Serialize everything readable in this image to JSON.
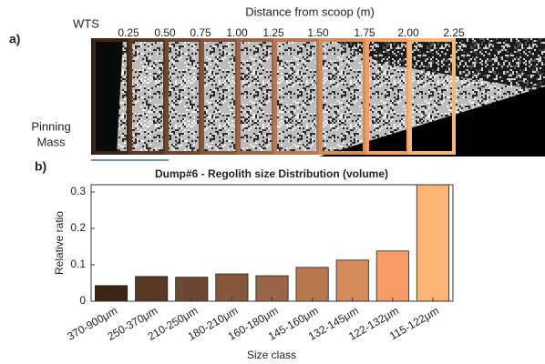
{
  "panel_a": {
    "label": "a)",
    "title": "Distance from scoop (m)",
    "wts": "WTS",
    "distances": [
      "0.25",
      "0.50",
      "0.75",
      "1.00",
      "1.25",
      "1.50",
      "1.75",
      "2.00",
      "2.25"
    ],
    "pinning": [
      "Pinning",
      "Mass"
    ]
  },
  "chart_data": {
    "type": "bar",
    "label": "b)",
    "title": "Dump#6 - Regolith size Distribution (volume)",
    "x_label": "Size class",
    "y_label": "Relative ratio",
    "categories": [
      "370-900μm",
      "250-370μm",
      "210-250μm",
      "180-210μm",
      "160-180μm",
      "145-160μm",
      "132-145μm",
      "122-132μm",
      "115-122μm"
    ],
    "values": [
      0.043,
      0.068,
      0.066,
      0.075,
      0.07,
      0.093,
      0.113,
      0.138,
      0.32
    ],
    "colors": [
      "#3b2616",
      "#5a3824",
      "#6e4730",
      "#85573b",
      "#9c6646",
      "#b8794f",
      "#d48c5c",
      "#f59d64",
      "#fbb574"
    ],
    "ylim": [
      0,
      0.32
    ],
    "yticks": [
      0,
      0.1,
      0.2,
      0.3
    ]
  }
}
